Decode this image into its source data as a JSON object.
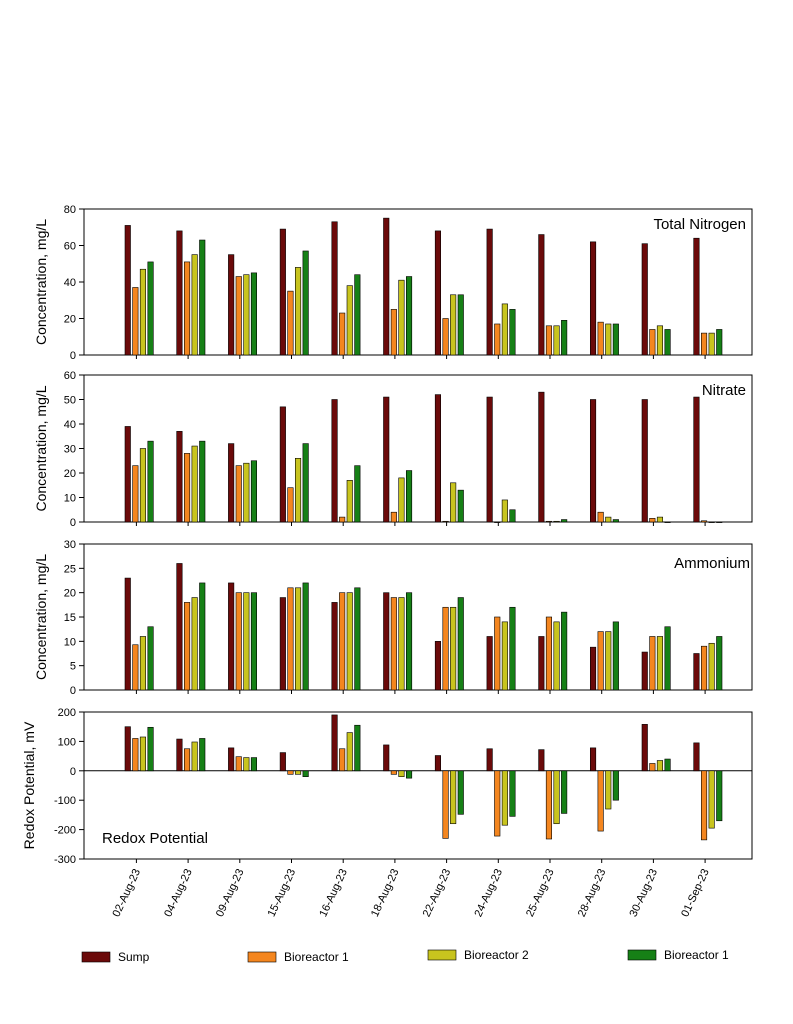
{
  "chart_data": [
    {
      "type": "bar",
      "title": "Total Nitrogen",
      "ylabel": "Concentration, mg/L",
      "ylim": [
        0,
        80
      ],
      "yticks": [
        0,
        20,
        40,
        60,
        80
      ],
      "series": [
        {
          "name": "Sump",
          "values": [
            71,
            68,
            55,
            69,
            73,
            75,
            68,
            69,
            66,
            62,
            61,
            64
          ]
        },
        {
          "name": "Bioreactor 1",
          "values": [
            37,
            51,
            43,
            35,
            23,
            25,
            20,
            17,
            16,
            18,
            14,
            12
          ]
        },
        {
          "name": "Bioreactor 2",
          "values": [
            47,
            55,
            44,
            48,
            38,
            41,
            33,
            28,
            16,
            17,
            16,
            12
          ]
        },
        {
          "name": "Bioreactor 1",
          "values": [
            51,
            63,
            45,
            57,
            44,
            43,
            33,
            25,
            19,
            17,
            14,
            14
          ]
        }
      ]
    },
    {
      "type": "bar",
      "title": "Nitrate",
      "ylabel": "Concentration, mg/L",
      "ylim": [
        0,
        60
      ],
      "yticks": [
        0,
        10,
        20,
        30,
        40,
        50,
        60
      ],
      "series": [
        {
          "name": "Sump",
          "values": [
            39,
            37,
            32,
            47,
            50,
            51,
            52,
            51,
            53,
            50,
            50,
            51
          ]
        },
        {
          "name": "Bioreactor 1",
          "values": [
            23,
            28,
            23,
            14,
            2,
            4,
            0.3,
            0,
            0.3,
            4,
            1.5,
            0.5
          ]
        },
        {
          "name": "Bioreactor 2",
          "values": [
            30,
            31,
            24,
            26,
            17,
            18,
            16,
            9,
            0.3,
            2,
            2,
            0
          ]
        },
        {
          "name": "Bioreactor 1",
          "values": [
            33,
            33,
            25,
            32,
            23,
            21,
            13,
            5,
            1,
            1,
            0,
            0
          ]
        }
      ]
    },
    {
      "type": "bar",
      "title": "Ammonium",
      "ylabel": "Concentration, mg/L",
      "ylim": [
        0,
        30
      ],
      "yticks": [
        0,
        5,
        10,
        15,
        20,
        25,
        30
      ],
      "series": [
        {
          "name": "Sump",
          "values": [
            23,
            26,
            22,
            19,
            18,
            20,
            10,
            11,
            11,
            8.8,
            7.8,
            7.5
          ]
        },
        {
          "name": "Bioreactor 1",
          "values": [
            9.3,
            18,
            20,
            21,
            20,
            19,
            17,
            15,
            15,
            12,
            11,
            9
          ]
        },
        {
          "name": "Bioreactor 2",
          "values": [
            11,
            19,
            20,
            21,
            20,
            19,
            17,
            14,
            14,
            12,
            11,
            9.6
          ]
        },
        {
          "name": "Bioreactor 1",
          "values": [
            13,
            22,
            20,
            22,
            21,
            20,
            19,
            17,
            16,
            14,
            13,
            11
          ]
        }
      ]
    },
    {
      "type": "bar",
      "title": "Redox Potential",
      "ylabel": "Redox Potential, mV",
      "ylim": [
        -300,
        200
      ],
      "yticks": [
        -300,
        -200,
        -100,
        0,
        100,
        200
      ],
      "series": [
        {
          "name": "Sump",
          "values": [
            150,
            108,
            78,
            62,
            190,
            88,
            52,
            75,
            72,
            78,
            158,
            95
          ]
        },
        {
          "name": "Bioreactor 1",
          "values": [
            110,
            75,
            48,
            -12,
            75,
            -12,
            -230,
            -222,
            -232,
            -205,
            25,
            -235
          ]
        },
        {
          "name": "Bioreactor 2",
          "values": [
            115,
            98,
            45,
            -12,
            130,
            -20,
            -180,
            -185,
            -180,
            -130,
            35,
            -195
          ]
        },
        {
          "name": "Bioreactor 1",
          "values": [
            148,
            110,
            45,
            -20,
            155,
            -25,
            -148,
            -155,
            -145,
            -100,
            40,
            -170
          ]
        }
      ]
    }
  ],
  "categories": [
    "02-Aug-23",
    "04-Aug-23",
    "09-Aug-23",
    "15-Aug-23",
    "16-Aug-23",
    "18-Aug-23",
    "22-Aug-23",
    "24-Aug-23",
    "25-Aug-23",
    "28-Aug-23",
    "30-Aug-23",
    "01-Sep-23"
  ],
  "legend": [
    {
      "label": "Sump",
      "color": "#6b0a0a"
    },
    {
      "label": "Bioreactor 1",
      "color": "#f4861f"
    },
    {
      "label": "Bioreactor 2",
      "color": "#c8c41e"
    },
    {
      "label": "Bioreactor 1",
      "color": "#168016"
    }
  ],
  "colors": [
    "#6b0a0a",
    "#f4861f",
    "#c8c41e",
    "#168016"
  ]
}
